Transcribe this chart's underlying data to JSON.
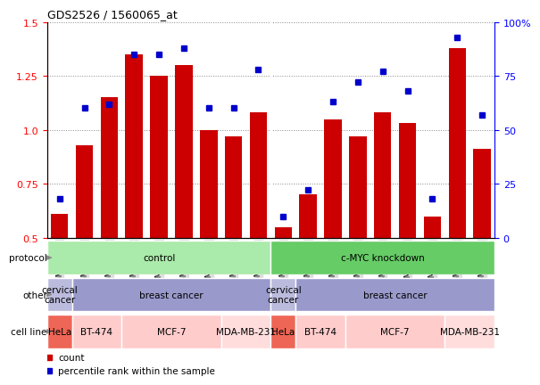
{
  "title": "GDS2526 / 1560065_at",
  "samples": [
    "GSM136095",
    "GSM136097",
    "GSM136079",
    "GSM136081",
    "GSM136083",
    "GSM136085",
    "GSM136087",
    "GSM136089",
    "GSM136091",
    "GSM136096",
    "GSM136098",
    "GSM136080",
    "GSM136082",
    "GSM136084",
    "GSM136086",
    "GSM136088",
    "GSM136090",
    "GSM136092"
  ],
  "bar_values": [
    0.61,
    0.93,
    1.15,
    1.35,
    1.25,
    1.3,
    1.0,
    0.97,
    1.08,
    0.55,
    0.7,
    1.05,
    0.97,
    1.08,
    1.03,
    0.6,
    1.38,
    0.91
  ],
  "dot_values_pct": [
    18,
    60,
    62,
    85,
    85,
    88,
    60,
    60,
    78,
    10,
    22,
    63,
    72,
    77,
    68,
    18,
    93,
    57
  ],
  "ylim_left": [
    0.5,
    1.5
  ],
  "ylim_right": [
    0,
    100
  ],
  "yticks_left": [
    0.5,
    0.75,
    1.0,
    1.25,
    1.5
  ],
  "yticks_right": [
    0,
    25,
    50,
    75,
    100
  ],
  "bar_color": "#cc0000",
  "dot_color": "#0000cc",
  "protocol_row": {
    "label": "protocol",
    "groups": [
      {
        "text": "control",
        "start": 0,
        "end": 9,
        "color": "#aaeaaa"
      },
      {
        "text": "c-MYC knockdown",
        "start": 9,
        "end": 18,
        "color": "#66cc66"
      }
    ]
  },
  "other_row": {
    "label": "other",
    "groups": [
      {
        "text": "cervical\ncancer",
        "start": 0,
        "end": 1,
        "color": "#bbbbdd"
      },
      {
        "text": "breast cancer",
        "start": 1,
        "end": 9,
        "color": "#9999cc"
      },
      {
        "text": "cervical\ncancer",
        "start": 9,
        "end": 10,
        "color": "#bbbbdd"
      },
      {
        "text": "breast cancer",
        "start": 10,
        "end": 18,
        "color": "#9999cc"
      }
    ]
  },
  "cell_line_row": {
    "label": "cell line",
    "groups": [
      {
        "text": "HeLa",
        "start": 0,
        "end": 1,
        "color": "#ee6655"
      },
      {
        "text": "BT-474",
        "start": 1,
        "end": 3,
        "color": "#ffcccc"
      },
      {
        "text": "MCF-7",
        "start": 3,
        "end": 7,
        "color": "#ffcccc"
      },
      {
        "text": "MDA-MB-231",
        "start": 7,
        "end": 9,
        "color": "#ffdddd"
      },
      {
        "text": "HeLa",
        "start": 9,
        "end": 10,
        "color": "#ee6655"
      },
      {
        "text": "BT-474",
        "start": 10,
        "end": 12,
        "color": "#ffcccc"
      },
      {
        "text": "MCF-7",
        "start": 12,
        "end": 16,
        "color": "#ffcccc"
      },
      {
        "text": "MDA-MB-231",
        "start": 16,
        "end": 18,
        "color": "#ffdddd"
      }
    ]
  },
  "legend_items": [
    {
      "label": "count",
      "color": "#cc0000"
    },
    {
      "label": "percentile rank within the sample",
      "color": "#0000cc"
    }
  ],
  "xtick_bg": "#dddddd"
}
